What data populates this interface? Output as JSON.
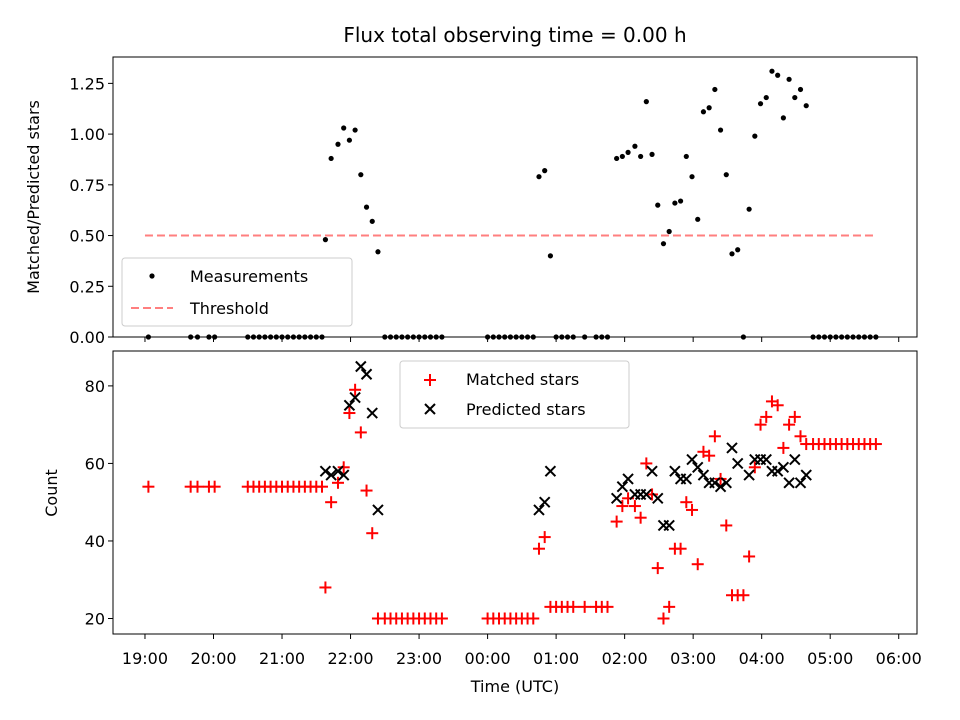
{
  "chart_data": [
    {
      "type": "scatter",
      "title": "Flux total observing time = 0.00 h",
      "xlabel": "",
      "ylabel": "Matched/Predicted stars",
      "xlim": [
        "18:32",
        "06:16"
      ],
      "ylim": [
        0.0,
        1.38
      ],
      "yticks": [
        0.0,
        0.25,
        0.5,
        0.75,
        1.0,
        1.25
      ],
      "ytick_labels": [
        "0.00",
        "0.25",
        "0.50",
        "0.75",
        "1.00",
        "1.25"
      ],
      "legend_position": "lower-left",
      "series": [
        {
          "name": "Measurements",
          "style": "dot",
          "color": "#000000",
          "points": [
            [
              "19:03",
              0.0
            ],
            [
              "19:40",
              0.0
            ],
            [
              "19:46",
              0.0
            ],
            [
              "19:56",
              0.0
            ],
            [
              "20:01",
              0.0
            ],
            [
              "20:30",
              0.0
            ],
            [
              "20:35",
              0.0
            ],
            [
              "20:40",
              0.0
            ],
            [
              "20:45",
              0.0
            ],
            [
              "20:50",
              0.0
            ],
            [
              "20:55",
              0.0
            ],
            [
              "21:00",
              0.0
            ],
            [
              "21:05",
              0.0
            ],
            [
              "21:10",
              0.0
            ],
            [
              "21:15",
              0.0
            ],
            [
              "21:20",
              0.0
            ],
            [
              "21:25",
              0.0
            ],
            [
              "21:30",
              0.0
            ],
            [
              "21:35",
              0.0
            ],
            [
              "21:38",
              0.48
            ],
            [
              "21:43",
              0.88
            ],
            [
              "21:49",
              0.95
            ],
            [
              "21:54",
              1.03
            ],
            [
              "21:59",
              0.97
            ],
            [
              "22:04",
              1.02
            ],
            [
              "22:09",
              0.8
            ],
            [
              "22:14",
              0.64
            ],
            [
              "22:19",
              0.57
            ],
            [
              "22:24",
              0.42
            ],
            [
              "22:30",
              0.0
            ],
            [
              "22:35",
              0.0
            ],
            [
              "22:40",
              0.0
            ],
            [
              "22:45",
              0.0
            ],
            [
              "22:50",
              0.0
            ],
            [
              "22:55",
              0.0
            ],
            [
              "23:00",
              0.0
            ],
            [
              "23:05",
              0.0
            ],
            [
              "23:10",
              0.0
            ],
            [
              "23:15",
              0.0
            ],
            [
              "23:20",
              0.0
            ],
            [
              "00:00",
              0.0
            ],
            [
              "00:05",
              0.0
            ],
            [
              "00:10",
              0.0
            ],
            [
              "00:15",
              0.0
            ],
            [
              "00:20",
              0.0
            ],
            [
              "00:25",
              0.0
            ],
            [
              "00:30",
              0.0
            ],
            [
              "00:35",
              0.0
            ],
            [
              "00:40",
              0.0
            ],
            [
              "00:45",
              0.79
            ],
            [
              "00:50",
              0.82
            ],
            [
              "00:55",
              0.4
            ],
            [
              "01:00",
              0.0
            ],
            [
              "01:05",
              0.0
            ],
            [
              "01:10",
              0.0
            ],
            [
              "01:15",
              0.0
            ],
            [
              "01:25",
              0.0
            ],
            [
              "01:35",
              0.0
            ],
            [
              "01:40",
              0.0
            ],
            [
              "01:45",
              0.0
            ],
            [
              "01:53",
              0.88
            ],
            [
              "01:58",
              0.89
            ],
            [
              "02:03",
              0.91
            ],
            [
              "02:09",
              0.94
            ],
            [
              "02:14",
              0.89
            ],
            [
              "02:19",
              1.16
            ],
            [
              "02:24",
              0.9
            ],
            [
              "02:29",
              0.65
            ],
            [
              "02:34",
              0.46
            ],
            [
              "02:39",
              0.52
            ],
            [
              "02:44",
              0.66
            ],
            [
              "02:49",
              0.67
            ],
            [
              "02:54",
              0.89
            ],
            [
              "02:59",
              0.79
            ],
            [
              "03:04",
              0.58
            ],
            [
              "03:09",
              1.11
            ],
            [
              "03:14",
              1.13
            ],
            [
              "03:19",
              1.22
            ],
            [
              "03:24",
              1.02
            ],
            [
              "03:29",
              0.8
            ],
            [
              "03:34",
              0.41
            ],
            [
              "03:39",
              0.43
            ],
            [
              "03:44",
              0.0
            ],
            [
              "03:49",
              0.63
            ],
            [
              "03:54",
              0.99
            ],
            [
              "03:59",
              1.15
            ],
            [
              "04:04",
              1.18
            ],
            [
              "04:09",
              1.31
            ],
            [
              "04:14",
              1.29
            ],
            [
              "04:19",
              1.08
            ],
            [
              "04:24",
              1.27
            ],
            [
              "04:29",
              1.18
            ],
            [
              "04:34",
              1.22
            ],
            [
              "04:39",
              1.14
            ],
            [
              "04:45",
              0.0
            ],
            [
              "04:50",
              0.0
            ],
            [
              "04:55",
              0.0
            ],
            [
              "05:00",
              0.0
            ],
            [
              "05:05",
              0.0
            ],
            [
              "05:10",
              0.0
            ],
            [
              "05:15",
              0.0
            ],
            [
              "05:20",
              0.0
            ],
            [
              "05:25",
              0.0
            ],
            [
              "05:30",
              0.0
            ],
            [
              "05:35",
              0.0
            ],
            [
              "05:40",
              0.0
            ]
          ]
        },
        {
          "name": "Threshold",
          "style": "dashed-line",
          "color": "#ff7f7f",
          "points": [
            [
              "19:00",
              0.5
            ],
            [
              "05:40",
              0.5
            ]
          ]
        }
      ]
    },
    {
      "type": "scatter",
      "title": "",
      "xlabel": "Time (UTC)",
      "ylabel": "Count",
      "xlim": [
        "18:32",
        "06:16"
      ],
      "ylim": [
        16,
        89
      ],
      "yticks": [
        20,
        40,
        60,
        80
      ],
      "xticks": [
        "19:00",
        "20:00",
        "21:00",
        "22:00",
        "23:00",
        "00:00",
        "01:00",
        "02:00",
        "03:00",
        "04:00",
        "05:00",
        "06:00"
      ],
      "legend_position": "upper-center",
      "series": [
        {
          "name": "Matched stars",
          "style": "plus",
          "color": "#ff0000",
          "points": [
            [
              "19:03",
              54
            ],
            [
              "19:40",
              54
            ],
            [
              "19:46",
              54
            ],
            [
              "19:56",
              54
            ],
            [
              "20:01",
              54
            ],
            [
              "20:30",
              54
            ],
            [
              "20:35",
              54
            ],
            [
              "20:40",
              54
            ],
            [
              "20:45",
              54
            ],
            [
              "20:50",
              54
            ],
            [
              "20:55",
              54
            ],
            [
              "21:00",
              54
            ],
            [
              "21:05",
              54
            ],
            [
              "21:10",
              54
            ],
            [
              "21:15",
              54
            ],
            [
              "21:20",
              54
            ],
            [
              "21:25",
              54
            ],
            [
              "21:30",
              54
            ],
            [
              "21:35",
              54
            ],
            [
              "21:38",
              28
            ],
            [
              "21:43",
              50
            ],
            [
              "21:49",
              55
            ],
            [
              "21:54",
              59
            ],
            [
              "21:59",
              73
            ],
            [
              "22:04",
              79
            ],
            [
              "22:09",
              68
            ],
            [
              "22:14",
              53
            ],
            [
              "22:19",
              42
            ],
            [
              "22:24",
              20
            ],
            [
              "22:30",
              20
            ],
            [
              "22:35",
              20
            ],
            [
              "22:40",
              20
            ],
            [
              "22:45",
              20
            ],
            [
              "22:50",
              20
            ],
            [
              "22:55",
              20
            ],
            [
              "23:00",
              20
            ],
            [
              "23:05",
              20
            ],
            [
              "23:10",
              20
            ],
            [
              "23:15",
              20
            ],
            [
              "23:20",
              20
            ],
            [
              "00:00",
              20
            ],
            [
              "00:05",
              20
            ],
            [
              "00:10",
              20
            ],
            [
              "00:15",
              20
            ],
            [
              "00:20",
              20
            ],
            [
              "00:25",
              20
            ],
            [
              "00:30",
              20
            ],
            [
              "00:35",
              20
            ],
            [
              "00:40",
              20
            ],
            [
              "00:45",
              38
            ],
            [
              "00:50",
              41
            ],
            [
              "00:55",
              23
            ],
            [
              "01:00",
              23
            ],
            [
              "01:05",
              23
            ],
            [
              "01:10",
              23
            ],
            [
              "01:15",
              23
            ],
            [
              "01:25",
              23
            ],
            [
              "01:35",
              23
            ],
            [
              "01:40",
              23
            ],
            [
              "01:45",
              23
            ],
            [
              "01:53",
              45
            ],
            [
              "01:58",
              49
            ],
            [
              "02:03",
              51
            ],
            [
              "02:09",
              49
            ],
            [
              "02:14",
              46
            ],
            [
              "02:19",
              60
            ],
            [
              "02:24",
              52
            ],
            [
              "02:29",
              33
            ],
            [
              "02:34",
              20
            ],
            [
              "02:39",
              23
            ],
            [
              "02:44",
              38
            ],
            [
              "02:49",
              38
            ],
            [
              "02:54",
              50
            ],
            [
              "02:59",
              48
            ],
            [
              "03:04",
              34
            ],
            [
              "03:09",
              63
            ],
            [
              "03:14",
              62
            ],
            [
              "03:19",
              67
            ],
            [
              "03:24",
              56
            ],
            [
              "03:29",
              44
            ],
            [
              "03:34",
              26
            ],
            [
              "03:39",
              26
            ],
            [
              "03:44",
              26
            ],
            [
              "03:49",
              36
            ],
            [
              "03:54",
              59
            ],
            [
              "03:59",
              70
            ],
            [
              "04:04",
              72
            ],
            [
              "04:09",
              76
            ],
            [
              "04:14",
              75
            ],
            [
              "04:19",
              64
            ],
            [
              "04:24",
              70
            ],
            [
              "04:29",
              72
            ],
            [
              "04:34",
              67
            ],
            [
              "04:39",
              65
            ],
            [
              "04:45",
              65
            ],
            [
              "04:50",
              65
            ],
            [
              "04:55",
              65
            ],
            [
              "05:00",
              65
            ],
            [
              "05:05",
              65
            ],
            [
              "05:10",
              65
            ],
            [
              "05:15",
              65
            ],
            [
              "05:20",
              65
            ],
            [
              "05:25",
              65
            ],
            [
              "05:30",
              65
            ],
            [
              "05:35",
              65
            ],
            [
              "05:40",
              65
            ]
          ]
        },
        {
          "name": "Predicted stars",
          "style": "x",
          "color": "#000000",
          "points": [
            [
              "21:38",
              58
            ],
            [
              "21:43",
              57
            ],
            [
              "21:49",
              58
            ],
            [
              "21:54",
              57
            ],
            [
              "21:59",
              75
            ],
            [
              "22:04",
              77
            ],
            [
              "22:09",
              85
            ],
            [
              "22:14",
              83
            ],
            [
              "22:19",
              73
            ],
            [
              "22:24",
              48
            ],
            [
              "00:45",
              48
            ],
            [
              "00:50",
              50
            ],
            [
              "00:55",
              58
            ],
            [
              "01:53",
              51
            ],
            [
              "01:58",
              54
            ],
            [
              "02:03",
              56
            ],
            [
              "02:09",
              52
            ],
            [
              "02:14",
              52
            ],
            [
              "02:19",
              52
            ],
            [
              "02:24",
              58
            ],
            [
              "02:29",
              51
            ],
            [
              "02:34",
              44
            ],
            [
              "02:39",
              44
            ],
            [
              "02:44",
              58
            ],
            [
              "02:49",
              56
            ],
            [
              "02:54",
              56
            ],
            [
              "02:59",
              61
            ],
            [
              "03:04",
              59
            ],
            [
              "03:09",
              57
            ],
            [
              "03:14",
              55
            ],
            [
              "03:19",
              55
            ],
            [
              "03:24",
              54
            ],
            [
              "03:29",
              55
            ],
            [
              "03:34",
              64
            ],
            [
              "03:39",
              60
            ],
            [
              "03:49",
              57
            ],
            [
              "03:54",
              61
            ],
            [
              "03:59",
              61
            ],
            [
              "04:04",
              61
            ],
            [
              "04:09",
              58
            ],
            [
              "04:14",
              58
            ],
            [
              "04:19",
              59
            ],
            [
              "04:24",
              55
            ],
            [
              "04:29",
              61
            ],
            [
              "04:34",
              55
            ],
            [
              "04:39",
              57
            ]
          ]
        }
      ]
    }
  ]
}
